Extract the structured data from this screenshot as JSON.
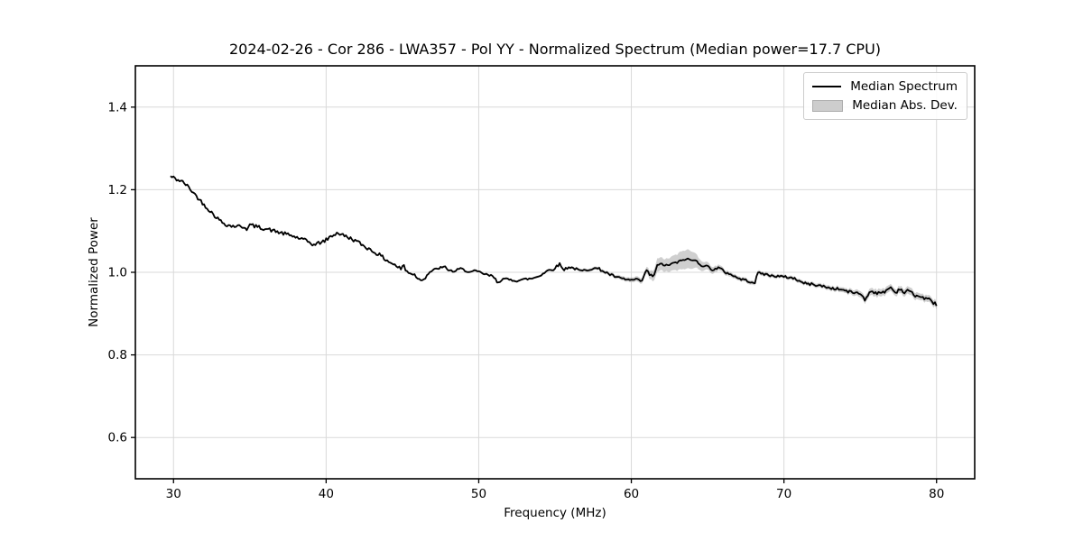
{
  "chart_data": {
    "type": "line",
    "title": "2024-02-26 - Cor 286 - LWA357 - Pol YY - Normalized Spectrum (Median power=17.7 CPU)",
    "xlabel": "Frequency (MHz)",
    "ylabel": "Normalized Power",
    "xlim": [
      27.5,
      82.5
    ],
    "ylim": [
      0.5,
      1.5
    ],
    "x_ticks": [
      30,
      40,
      50,
      60,
      70,
      80
    ],
    "y_ticks": [
      0.6,
      0.8,
      1.0,
      1.2,
      1.4
    ],
    "grid": true,
    "grid_color": "#d9d9d9",
    "legend_position": "upper right",
    "series": [
      {
        "name": "Median Spectrum",
        "role": "line",
        "color": "#000000",
        "points": [
          [
            29.8,
            1.232
          ],
          [
            30.0,
            1.229
          ],
          [
            30.2,
            1.225
          ],
          [
            30.5,
            1.221
          ],
          [
            30.8,
            1.213
          ],
          [
            31.1,
            1.201
          ],
          [
            31.4,
            1.189
          ],
          [
            31.7,
            1.176
          ],
          [
            32.0,
            1.164
          ],
          [
            32.3,
            1.152
          ],
          [
            32.6,
            1.141
          ],
          [
            32.9,
            1.13
          ],
          [
            33.2,
            1.121
          ],
          [
            33.5,
            1.115
          ],
          [
            33.8,
            1.112
          ],
          [
            34.1,
            1.112
          ],
          [
            34.4,
            1.111
          ],
          [
            34.7,
            1.109
          ],
          [
            34.85,
            1.104
          ],
          [
            35.0,
            1.115
          ],
          [
            35.3,
            1.112
          ],
          [
            35.7,
            1.108
          ],
          [
            36.1,
            1.105
          ],
          [
            36.5,
            1.101
          ],
          [
            36.9,
            1.097
          ],
          [
            37.3,
            1.093
          ],
          [
            37.7,
            1.089
          ],
          [
            38.1,
            1.084
          ],
          [
            38.5,
            1.079
          ],
          [
            38.9,
            1.073
          ],
          [
            39.2,
            1.066
          ],
          [
            39.45,
            1.07
          ],
          [
            39.7,
            1.073
          ],
          [
            39.95,
            1.077
          ],
          [
            40.2,
            1.084
          ],
          [
            40.5,
            1.091
          ],
          [
            40.75,
            1.096
          ],
          [
            41.0,
            1.091
          ],
          [
            41.3,
            1.087
          ],
          [
            41.6,
            1.082
          ],
          [
            41.9,
            1.077
          ],
          [
            42.3,
            1.068
          ],
          [
            42.7,
            1.059
          ],
          [
            43.1,
            1.05
          ],
          [
            43.5,
            1.042
          ],
          [
            43.9,
            1.031
          ],
          [
            44.3,
            1.022
          ],
          [
            44.7,
            1.013
          ],
          [
            44.95,
            1.007
          ],
          [
            45.05,
            1.023
          ],
          [
            45.2,
            1.004
          ],
          [
            45.5,
            0.999
          ],
          [
            45.8,
            0.994
          ],
          [
            46.15,
            0.981
          ],
          [
            46.45,
            0.985
          ],
          [
            46.75,
            1.0
          ],
          [
            47.1,
            1.006
          ],
          [
            47.45,
            1.011
          ],
          [
            47.8,
            1.012
          ],
          [
            48.1,
            1.004
          ],
          [
            48.45,
            1.002
          ],
          [
            48.75,
            1.009
          ],
          [
            49.1,
            1.005
          ],
          [
            49.45,
            1.0
          ],
          [
            49.8,
            1.003
          ],
          [
            50.2,
            0.998
          ],
          [
            50.6,
            0.993
          ],
          [
            50.95,
            0.99
          ],
          [
            51.25,
            0.975
          ],
          [
            51.55,
            0.984
          ],
          [
            52.0,
            0.982
          ],
          [
            52.5,
            0.98
          ],
          [
            53.0,
            0.983
          ],
          [
            53.5,
            0.985
          ],
          [
            54.0,
            0.992
          ],
          [
            54.5,
            1.004
          ],
          [
            54.9,
            1.008
          ],
          [
            55.3,
            1.02
          ],
          [
            55.55,
            1.006
          ],
          [
            55.9,
            1.013
          ],
          [
            56.3,
            1.009
          ],
          [
            56.7,
            1.003
          ],
          [
            57.1,
            1.006
          ],
          [
            57.5,
            1.01
          ],
          [
            57.9,
            1.008
          ],
          [
            58.3,
            1.0
          ],
          [
            58.7,
            0.993
          ],
          [
            59.1,
            0.987
          ],
          [
            59.5,
            0.984
          ],
          [
            59.9,
            0.981
          ],
          [
            60.3,
            0.982
          ],
          [
            60.7,
            0.979
          ],
          [
            61.0,
            1.006
          ],
          [
            61.2,
            0.994
          ],
          [
            61.45,
            0.99
          ],
          [
            61.7,
            1.016
          ],
          [
            62.0,
            1.02
          ],
          [
            62.3,
            1.016
          ],
          [
            62.7,
            1.021
          ],
          [
            63.1,
            1.025
          ],
          [
            63.5,
            1.032
          ],
          [
            63.9,
            1.03
          ],
          [
            64.3,
            1.027
          ],
          [
            64.6,
            1.017
          ],
          [
            65.0,
            1.014
          ],
          [
            65.35,
            1.006
          ],
          [
            65.75,
            1.011
          ],
          [
            66.15,
            1.0
          ],
          [
            66.55,
            0.995
          ],
          [
            66.95,
            0.986
          ],
          [
            67.35,
            0.982
          ],
          [
            67.75,
            0.978
          ],
          [
            68.1,
            0.975
          ],
          [
            68.3,
            0.999
          ],
          [
            68.7,
            0.996
          ],
          [
            69.1,
            0.992
          ],
          [
            69.5,
            0.991
          ],
          [
            69.9,
            0.989
          ],
          [
            70.3,
            0.988
          ],
          [
            70.7,
            0.985
          ],
          [
            71.1,
            0.977
          ],
          [
            71.5,
            0.972
          ],
          [
            71.9,
            0.971
          ],
          [
            72.3,
            0.968
          ],
          [
            72.7,
            0.965
          ],
          [
            73.1,
            0.961
          ],
          [
            73.5,
            0.96
          ],
          [
            73.9,
            0.957
          ],
          [
            74.3,
            0.952
          ],
          [
            74.7,
            0.951
          ],
          [
            75.1,
            0.946
          ],
          [
            75.35,
            0.932
          ],
          [
            75.65,
            0.956
          ],
          [
            76.0,
            0.951
          ],
          [
            76.35,
            0.948
          ],
          [
            76.7,
            0.956
          ],
          [
            77.0,
            0.964
          ],
          [
            77.3,
            0.95
          ],
          [
            77.6,
            0.961
          ],
          [
            77.9,
            0.95
          ],
          [
            78.2,
            0.957
          ],
          [
            78.5,
            0.945
          ],
          [
            78.85,
            0.942
          ],
          [
            79.15,
            0.938
          ],
          [
            79.45,
            0.935
          ],
          [
            79.75,
            0.928
          ],
          [
            80.0,
            0.922
          ]
        ]
      },
      {
        "name": "Median Abs. Dev.",
        "role": "band",
        "color": "#a0a0a0",
        "opacity": 0.5,
        "halfwidth_points": [
          [
            29.8,
            0.0025
          ],
          [
            50.0,
            0.0025
          ],
          [
            55.0,
            0.003
          ],
          [
            58.0,
            0.004
          ],
          [
            59.5,
            0.005
          ],
          [
            60.3,
            0.006
          ],
          [
            60.9,
            0.007
          ],
          [
            61.3,
            0.011
          ],
          [
            61.7,
            0.016
          ],
          [
            62.2,
            0.015
          ],
          [
            62.8,
            0.018
          ],
          [
            63.3,
            0.022
          ],
          [
            63.7,
            0.023
          ],
          [
            64.05,
            0.02
          ],
          [
            64.4,
            0.014
          ],
          [
            64.8,
            0.01
          ],
          [
            65.3,
            0.008
          ],
          [
            66.0,
            0.006
          ],
          [
            67.0,
            0.005
          ],
          [
            68.5,
            0.005
          ],
          [
            70.0,
            0.0045
          ],
          [
            72.0,
            0.005
          ],
          [
            74.0,
            0.006
          ],
          [
            75.3,
            0.008
          ],
          [
            76.2,
            0.009
          ],
          [
            77.2,
            0.008
          ],
          [
            78.2,
            0.009
          ],
          [
            79.0,
            0.008
          ],
          [
            80.0,
            0.0085
          ]
        ]
      }
    ],
    "noise": {
      "amplitude": 0.0035,
      "step_mhz": 0.1,
      "seed": 42
    }
  }
}
